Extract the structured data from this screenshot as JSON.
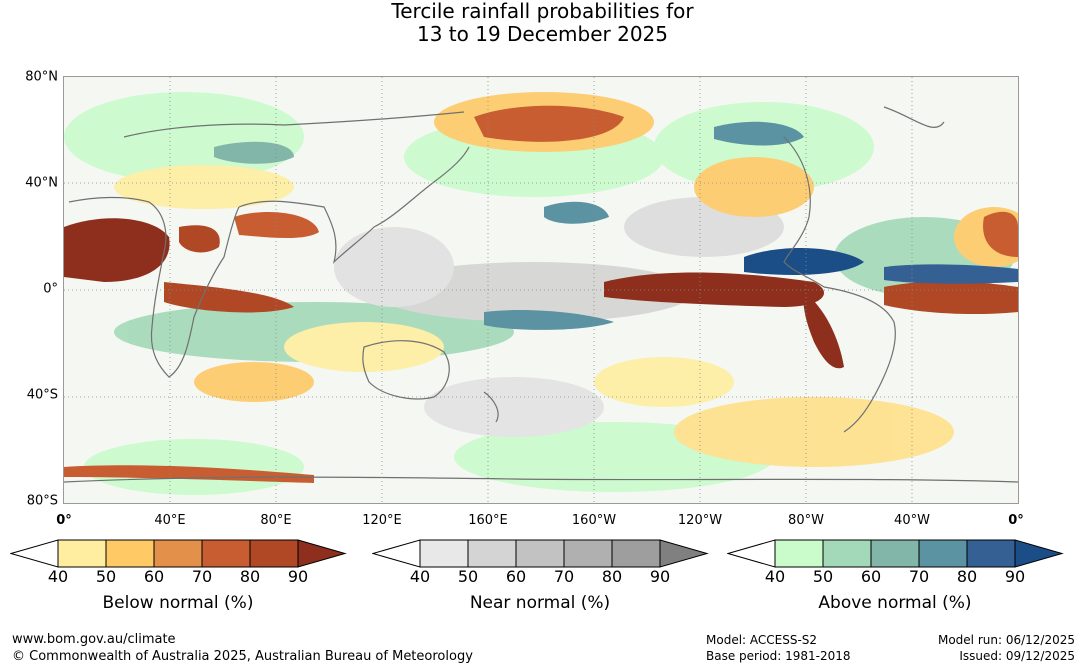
{
  "title": {
    "line1": "Tercile rainfall probabilities for",
    "line2": "13 to 19 December 2025"
  },
  "map": {
    "lat_labels": [
      "80°N",
      "40°N",
      "0°",
      "40°S",
      "80°S"
    ],
    "lon_labels": [
      "0°",
      "40°E",
      "80°E",
      "120°E",
      "160°E",
      "160°W",
      "120°W",
      "80°W",
      "40°W",
      "0°"
    ]
  },
  "legends": [
    {
      "caption": "Below normal (%)",
      "ticks": [
        "40",
        "50",
        "60",
        "70",
        "80",
        "90"
      ],
      "colors": [
        "#ffffff",
        "#ffeea0",
        "#ffc966",
        "#e3904a",
        "#c85d32",
        "#b04725",
        "#8e2e1c"
      ]
    },
    {
      "caption": "Near normal (%)",
      "ticks": [
        "40",
        "50",
        "60",
        "70",
        "80",
        "90"
      ],
      "colors": [
        "#ffffff",
        "#e8e8e8",
        "#d4d4d4",
        "#c2c2c2",
        "#b0b0b0",
        "#9e9e9e",
        "#808080"
      ]
    },
    {
      "caption": "Above normal (%)",
      "ticks": [
        "40",
        "50",
        "60",
        "70",
        "80",
        "90"
      ],
      "colors": [
        "#ffffff",
        "#c9fbcb",
        "#a3d9b8",
        "#82b6a9",
        "#5b93a2",
        "#346093",
        "#1b4d86"
      ]
    }
  ],
  "footer": {
    "site": "www.bom.gov.au/climate",
    "copyright": "© Commonwealth of Australia 2025, Australian Bureau of Meteorology",
    "model": "Model: ACCESS-S2",
    "base_period": "Base period: 1981-2018",
    "model_run": "Model run: 06/12/2025",
    "issued": "Issued: 09/12/2025"
  }
}
